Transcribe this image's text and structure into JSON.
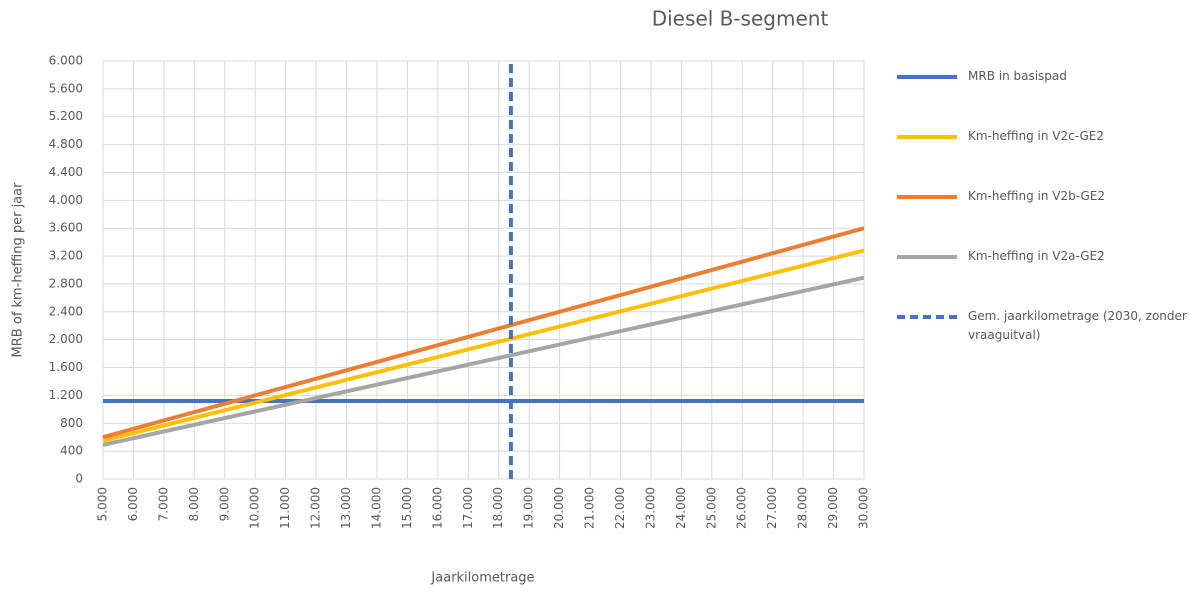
{
  "chart_data": {
    "type": "line",
    "title": "Diesel B-segment",
    "x_label": "Jaarkilometrage",
    "y_label": "MRB of km-heffing per jaar",
    "xlim": [
      5000,
      30000
    ],
    "ylim": [
      0,
      6000
    ],
    "grid": true,
    "legend": "right",
    "xticks": [
      {
        "value": 5000,
        "label": "5.000"
      },
      {
        "value": 6000,
        "label": "6.000"
      },
      {
        "value": 7000,
        "label": "7.000"
      },
      {
        "value": 8000,
        "label": "8.000"
      },
      {
        "value": 9000,
        "label": "9.000"
      },
      {
        "value": 10000,
        "label": "10.000"
      },
      {
        "value": 11000,
        "label": "11.000"
      },
      {
        "value": 12000,
        "label": "12.000"
      },
      {
        "value": 13000,
        "label": "13.000"
      },
      {
        "value": 14000,
        "label": "14.000"
      },
      {
        "value": 15000,
        "label": "15.000"
      },
      {
        "value": 16000,
        "label": "16.000"
      },
      {
        "value": 17000,
        "label": "17.000"
      },
      {
        "value": 18000,
        "label": "18.000"
      },
      {
        "value": 19000,
        "label": "19.000"
      },
      {
        "value": 20000,
        "label": "20.000"
      },
      {
        "value": 21000,
        "label": "21.000"
      },
      {
        "value": 22000,
        "label": "22.000"
      },
      {
        "value": 23000,
        "label": "23.000"
      },
      {
        "value": 24000,
        "label": "24.000"
      },
      {
        "value": 25000,
        "label": "25.000"
      },
      {
        "value": 26000,
        "label": "26.000"
      },
      {
        "value": 27000,
        "label": "27.000"
      },
      {
        "value": 28000,
        "label": "28.000"
      },
      {
        "value": 29000,
        "label": "29.000"
      },
      {
        "value": 30000,
        "label": "30.000"
      }
    ],
    "yticks": [
      0,
      400,
      800,
      {
        "value": 1200,
        "label": "1.200"
      },
      {
        "value": 1600,
        "label": "1.600"
      },
      {
        "value": 2000,
        "label": "2.000"
      },
      {
        "value": 2400,
        "label": "2.400"
      },
      {
        "value": 2800,
        "label": "2.800"
      },
      {
        "value": 3200,
        "label": "3.200"
      },
      {
        "value": 3600,
        "label": "3.600"
      },
      {
        "value": 4000,
        "label": "4.000"
      },
      {
        "value": 4400,
        "label": "4.400"
      },
      {
        "value": 4800,
        "label": "4.800"
      },
      {
        "value": 5200,
        "label": "5.200"
      },
      {
        "value": 5600,
        "label": "5.600"
      },
      {
        "value": 6000,
        "label": "6.000"
      }
    ],
    "series": [
      {
        "name": "MRB in basispad",
        "color": "#4472c4",
        "x": [
          5000,
          30000
        ],
        "values": [
          1120,
          1120
        ]
      },
      {
        "name": "Km-heffing in V2c-GE2",
        "color": "#ffc000",
        "x": [
          5000,
          30000
        ],
        "values": [
          550,
          3280
        ]
      },
      {
        "name": "Km-heffing in V2b-GE2",
        "color": "#ed7d31",
        "x": [
          5000,
          30000
        ],
        "values": [
          600,
          3600
        ]
      },
      {
        "name": "Km-heffing in V2a-GE2",
        "color": "#a5a5a5",
        "x": [
          5000,
          30000
        ],
        "values": [
          490,
          2890
        ]
      },
      {
        "name": "Gem. jaarkilometrage (2030, zonder vraaguitval)",
        "color": "#4472c4",
        "dashed": true,
        "x": [
          18400,
          18400
        ],
        "values": [
          0,
          6000
        ]
      }
    ]
  }
}
